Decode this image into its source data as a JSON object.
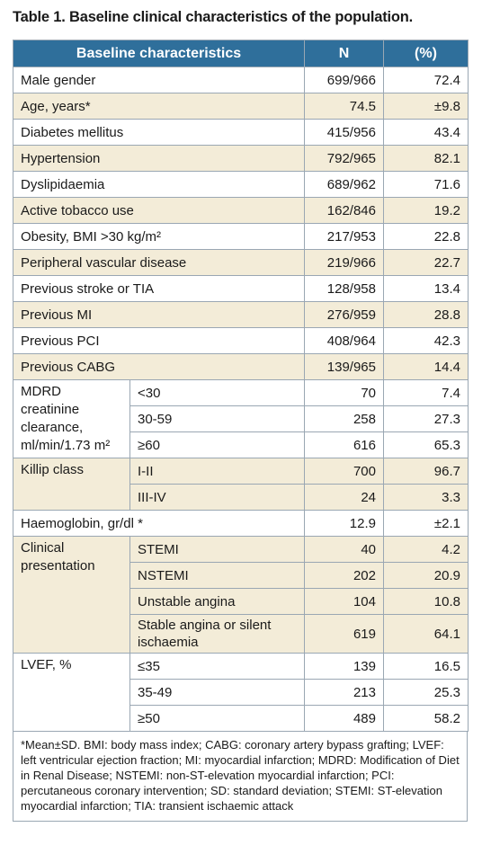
{
  "caption": "Table 1. Baseline clinical characteristics of the population.",
  "headers": {
    "characteristic": "Baseline characteristics",
    "n": "N",
    "pct": "(%)"
  },
  "rows": [
    {
      "label": "Male gender",
      "n": "699/966",
      "pct": "72.4"
    },
    {
      "label": "Age, years*",
      "n": "74.5",
      "pct": "±9.8"
    },
    {
      "label": "Diabetes mellitus",
      "n": "415/956",
      "pct": "43.4"
    },
    {
      "label": "Hypertension",
      "n": "792/965",
      "pct": "82.1"
    },
    {
      "label": "Dyslipidaemia",
      "n": "689/962",
      "pct": "71.6"
    },
    {
      "label": "Active tobacco use",
      "n": "162/846",
      "pct": "19.2"
    },
    {
      "label": "Obesity, BMI >30 kg/m²",
      "n": "217/953",
      "pct": "22.8"
    },
    {
      "label": "Peripheral vascular disease",
      "n": "219/966",
      "pct": "22.7"
    },
    {
      "label": "Previous stroke or TIA",
      "n": "128/958",
      "pct": "13.4"
    },
    {
      "label": "Previous MI",
      "n": "276/959",
      "pct": "28.8"
    },
    {
      "label": "Previous PCI",
      "n": "408/964",
      "pct": "42.3"
    },
    {
      "label": "Previous CABG",
      "n": "139/965",
      "pct": "14.4"
    }
  ],
  "mdrd": {
    "label": "MDRD creatinine clearance, ml/min/1.73 m²",
    "rows": [
      {
        "sub": "<30",
        "n": "70",
        "pct": "7.4"
      },
      {
        "sub": "30-59",
        "n": "258",
        "pct": "27.3"
      },
      {
        "sub": "≥60",
        "n": "616",
        "pct": "65.3"
      }
    ]
  },
  "killip": {
    "label": "Killip class",
    "rows": [
      {
        "sub": "I-II",
        "n": "700",
        "pct": "96.7"
      },
      {
        "sub": "III-IV",
        "n": "24",
        "pct": "3.3"
      }
    ]
  },
  "haemoglobin": {
    "label": "Haemoglobin, gr/dl *",
    "n": "12.9",
    "pct": "±2.1"
  },
  "clinical": {
    "label": "Clinical presentation",
    "rows": [
      {
        "sub": "STEMI",
        "n": "40",
        "pct": "4.2"
      },
      {
        "sub": "NSTEMI",
        "n": "202",
        "pct": "20.9"
      },
      {
        "sub": "Unstable angina",
        "n": "104",
        "pct": "10.8"
      },
      {
        "sub": "Stable angina or silent ischaemia",
        "n": "619",
        "pct": "64.1"
      }
    ]
  },
  "lvef": {
    "label": "LVEF, %",
    "rows": [
      {
        "sub": "≤35",
        "n": "139",
        "pct": "16.5"
      },
      {
        "sub": "35-49",
        "n": "213",
        "pct": "25.3"
      },
      {
        "sub": "≥50",
        "n": "489",
        "pct": "58.2"
      }
    ]
  },
  "footnote": "*Mean±SD. BMI: body mass index; CABG: coronary artery bypass grafting; LVEF: left ventricular ejection fraction; MI: myocardial infarction; MDRD: Modification of Diet in Renal Disease; NSTEMI: non-ST-elevation myocardial infarction; PCI: percutaneous coronary intervention; SD: standard deviation; STEMI: ST-elevation myocardial infarction; TIA: transient ischaemic attack"
}
